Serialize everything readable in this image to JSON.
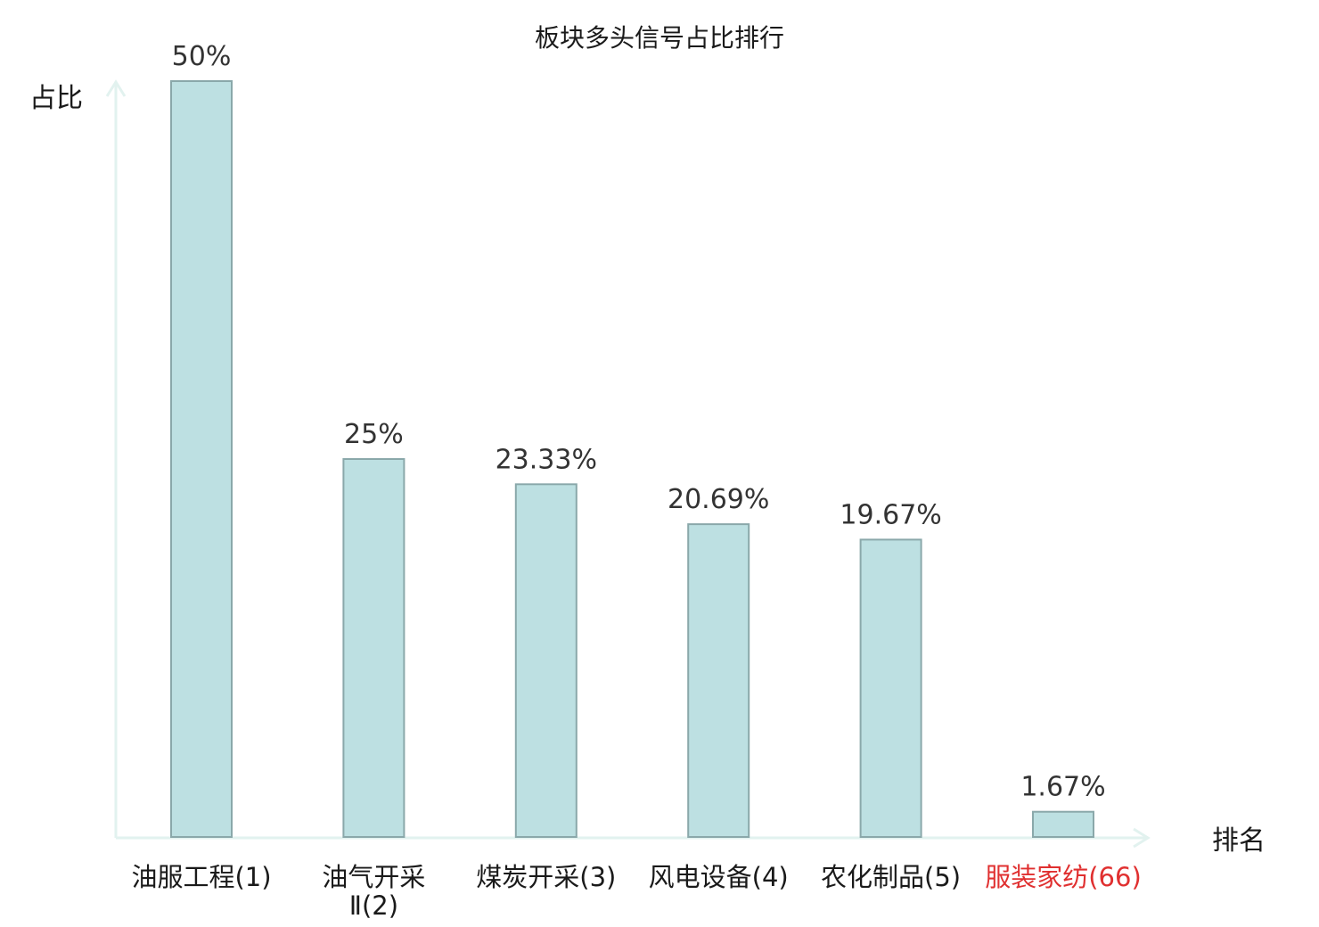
{
  "chart_data": {
    "type": "bar",
    "title": "板块多头信号占比排行",
    "xlabel": "排名",
    "ylabel": "占比",
    "unit": "%",
    "ylim": [
      0,
      50
    ],
    "grid": false,
    "categories": [
      [
        "油服工程(1)"
      ],
      [
        "油气开采",
        "Ⅱ(2)"
      ],
      [
        "煤炭开采(3)"
      ],
      [
        "风电设备(4)"
      ],
      [
        "农化制品(5)"
      ],
      [
        "服装家纺(66)"
      ]
    ],
    "values": [
      50,
      25,
      23.33,
      20.69,
      19.67,
      1.67
    ],
    "value_labels": [
      "50%",
      "25%",
      "23.33%",
      "20.69%",
      "19.67%",
      "1.67%"
    ],
    "highlight_index": 5
  },
  "colors": {
    "bar_fill": "#bde0e2",
    "bar_stroke": "#8aa8aa",
    "axis": "#e2f2ef",
    "highlight": "#e03030"
  }
}
